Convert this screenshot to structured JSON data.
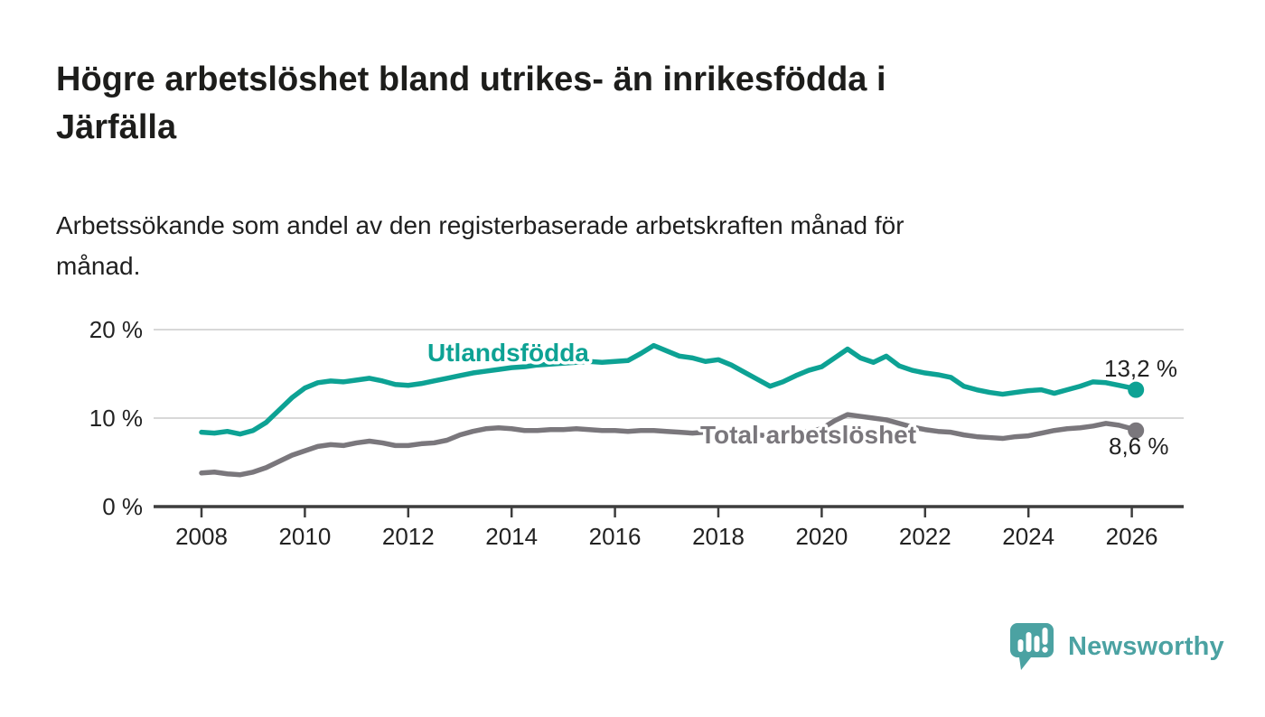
{
  "page": {
    "title": "Högre arbetslöshet bland utrikes- än inrikesfödda i Järfälla",
    "title_lines": [
      "Högre arbetslöshet bland utrikes- än inrikesfödda i",
      "Järfälla"
    ],
    "subtitle": "Arbetssökande som andel av den registerbaserade arbetskraften månad för månad.",
    "subtitle_lines": [
      "Arbetssökande som andel av den registerbaserade arbetskraften månad för",
      "månad."
    ]
  },
  "footer": {
    "brand": "Newsworthy",
    "brand_color": "#4ba2a2",
    "logo_icon": "speech-bubble-bar-chart-icon"
  },
  "colors": {
    "foreign_born_line": "#0da294",
    "total_line": "#7a777c",
    "grid": "#d8d8d8",
    "axis": "#3d3d3d",
    "text": "#222222"
  },
  "chart_data": {
    "type": "line",
    "title": "Högre arbetslöshet bland utrikes- än inrikesfödda i Järfälla",
    "subtitle": "Arbetssökande som andel av den registerbaserade arbetskraften månad för månad.",
    "xlabel": "",
    "ylabel": "",
    "unit": "%",
    "grid": "horizontal",
    "xlim": [
      2007.1,
      2027.0
    ],
    "ylim": [
      0,
      20
    ],
    "xticks": [
      2008,
      2010,
      2012,
      2014,
      2016,
      2018,
      2020,
      2022,
      2024,
      2026
    ],
    "ytick_values": [
      0,
      10,
      20
    ],
    "ytick_labels": [
      "0 %",
      "10 %",
      "20 %"
    ],
    "x": [
      2008,
      2008.25,
      2008.5,
      2008.75,
      2009,
      2009.25,
      2009.5,
      2009.75,
      2010,
      2010.25,
      2010.5,
      2010.75,
      2011,
      2011.25,
      2011.5,
      2011.75,
      2012,
      2012.25,
      2012.5,
      2012.75,
      2013,
      2013.25,
      2013.5,
      2013.75,
      2014,
      2014.25,
      2014.5,
      2014.75,
      2015,
      2015.25,
      2015.5,
      2015.75,
      2016,
      2016.25,
      2016.5,
      2016.75,
      2017,
      2017.25,
      2017.5,
      2017.75,
      2018,
      2018.25,
      2018.5,
      2018.75,
      2019,
      2019.25,
      2019.5,
      2019.75,
      2020,
      2020.25,
      2020.5,
      2020.75,
      2021,
      2021.25,
      2021.5,
      2021.75,
      2022,
      2022.25,
      2022.5,
      2022.75,
      2023,
      2023.25,
      2023.5,
      2023.75,
      2024,
      2024.25,
      2024.5,
      2024.75,
      2025,
      2025.25,
      2025.5,
      2025.75,
      2026,
      2026.08
    ],
    "series": [
      {
        "id": "utlandsfodda",
        "name": "Utlandsfödda",
        "color": "#0da294",
        "end_label": "13,2 %",
        "end_value": 13.2,
        "values": [
          8.4,
          8.3,
          8.5,
          8.2,
          8.6,
          9.5,
          10.9,
          12.3,
          13.4,
          14.0,
          14.2,
          14.1,
          14.3,
          14.5,
          14.2,
          13.8,
          13.7,
          13.9,
          14.2,
          14.5,
          14.8,
          15.1,
          15.3,
          15.5,
          15.7,
          15.8,
          16.0,
          16.1,
          16.2,
          16.3,
          16.4,
          16.3,
          16.4,
          16.5,
          17.3,
          18.2,
          17.6,
          17.0,
          16.8,
          16.4,
          16.6,
          16.0,
          15.2,
          14.4,
          13.6,
          14.1,
          14.8,
          15.4,
          15.8,
          16.8,
          17.8,
          16.8,
          16.3,
          17.0,
          15.9,
          15.4,
          15.1,
          14.9,
          14.6,
          13.6,
          13.2,
          12.9,
          12.7,
          12.9,
          13.1,
          13.2,
          12.8,
          13.2,
          13.6,
          14.1,
          14.0,
          13.7,
          13.4,
          13.2
        ]
      },
      {
        "id": "total",
        "name": "Total arbetslöshet",
        "color": "#7a777c",
        "end_label": "8,6 %",
        "end_value": 8.6,
        "values": [
          3.8,
          3.9,
          3.7,
          3.6,
          3.9,
          4.4,
          5.1,
          5.8,
          6.3,
          6.8,
          7.0,
          6.9,
          7.2,
          7.4,
          7.2,
          6.9,
          6.9,
          7.1,
          7.2,
          7.5,
          8.1,
          8.5,
          8.8,
          8.9,
          8.8,
          8.6,
          8.6,
          8.7,
          8.7,
          8.8,
          8.7,
          8.6,
          8.6,
          8.5,
          8.6,
          8.6,
          8.5,
          8.4,
          8.3,
          8.4,
          8.4,
          8.3,
          8.2,
          8.1,
          8.0,
          8.1,
          8.3,
          8.5,
          8.8,
          9.7,
          10.4,
          10.2,
          10.0,
          9.8,
          9.4,
          9.0,
          8.7,
          8.5,
          8.4,
          8.1,
          7.9,
          7.8,
          7.7,
          7.9,
          8.0,
          8.3,
          8.6,
          8.8,
          8.9,
          9.1,
          9.4,
          9.2,
          8.8,
          8.6
        ]
      }
    ],
    "legend_position": "inline-labels"
  }
}
